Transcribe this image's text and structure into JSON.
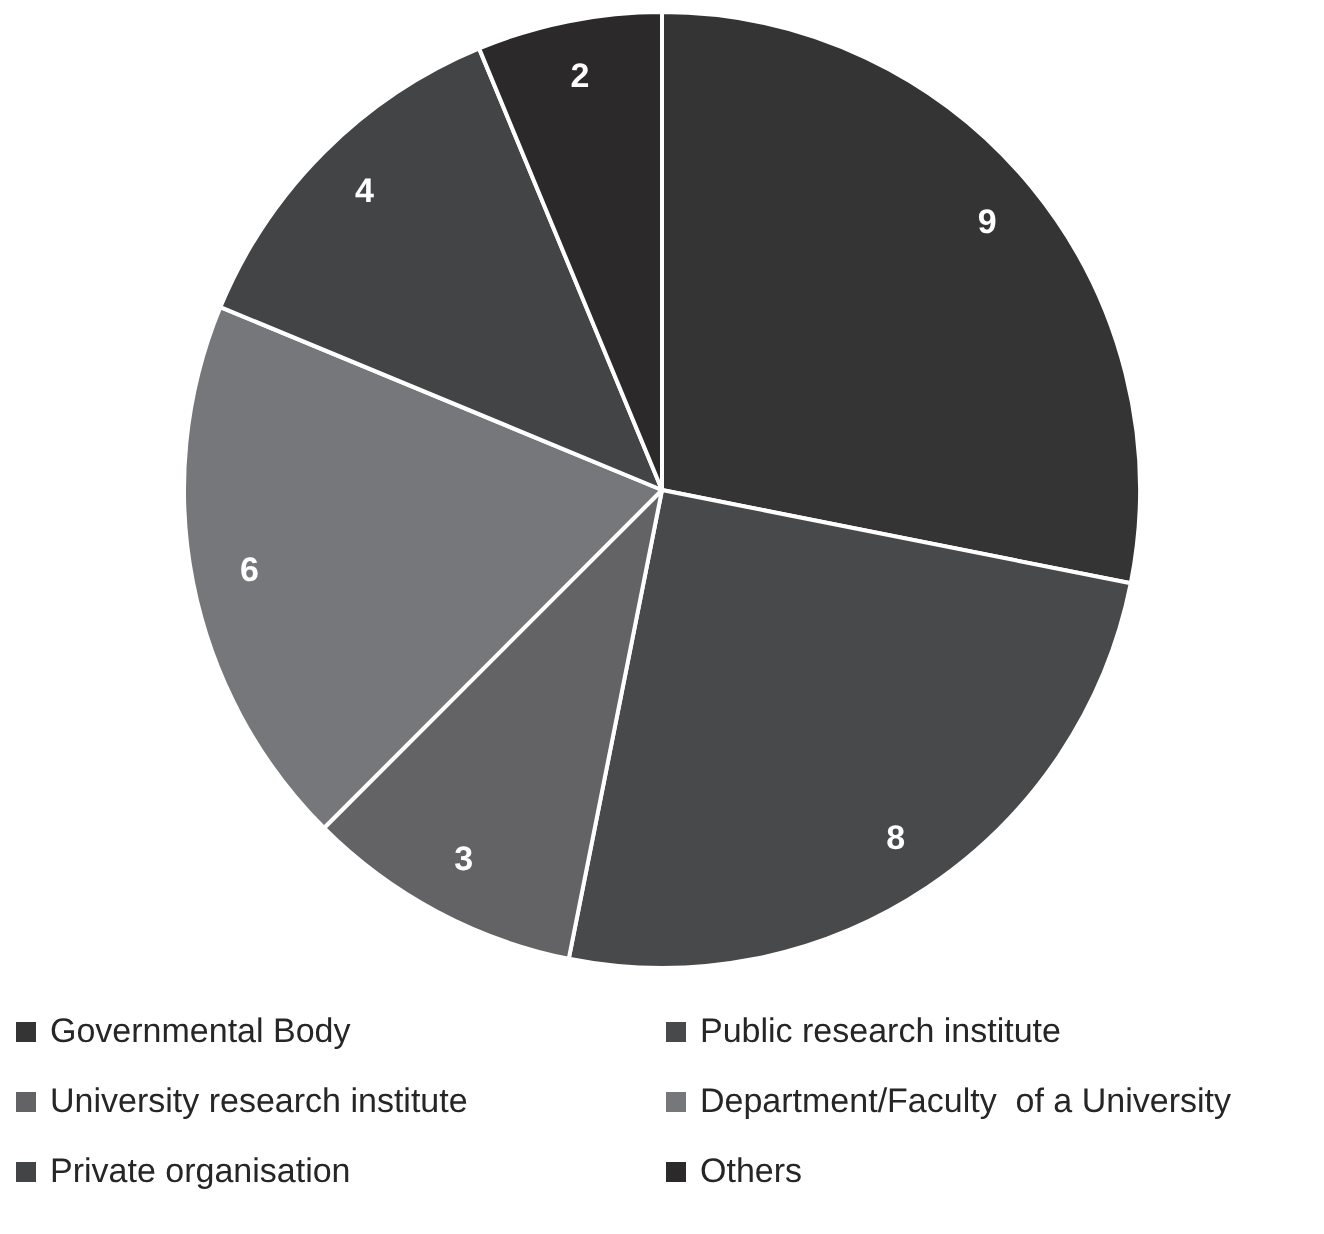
{
  "chart_data": {
    "type": "pie",
    "categories": [
      "Governmental Body",
      "Public research institute",
      "University research institute",
      "Department/Faculty  of a University",
      "Private organisation",
      "Others"
    ],
    "values": [
      9,
      8,
      3,
      6,
      4,
      2
    ],
    "colors": [
      "#343434",
      "#48494b",
      "#636365",
      "#76777a",
      "#434446",
      "#2b292a"
    ],
    "data_labels": true,
    "legend": "bottom"
  }
}
